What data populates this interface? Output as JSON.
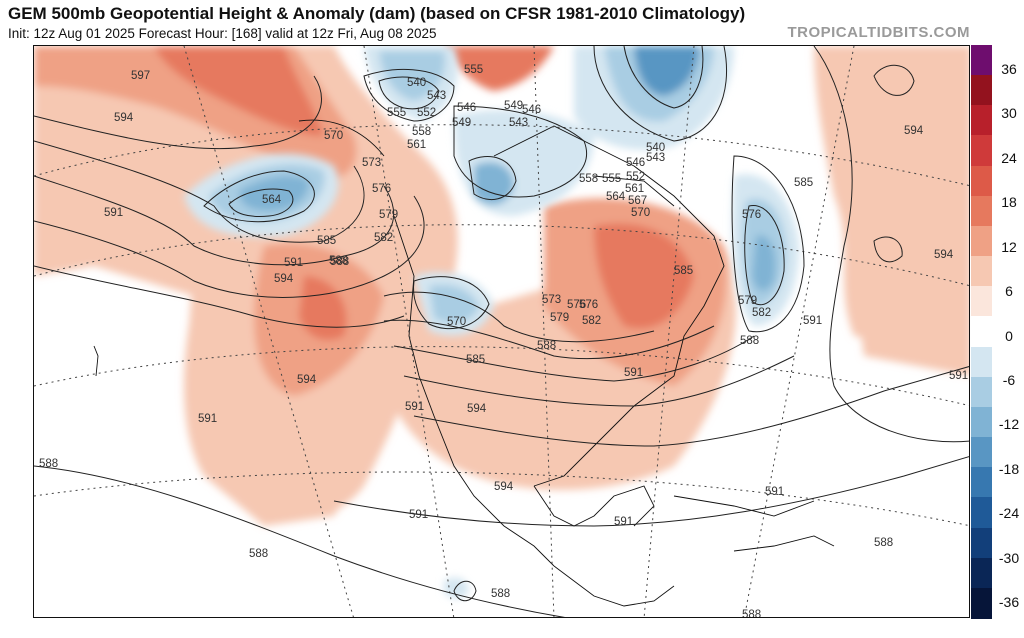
{
  "header": {
    "title": "GEM 500mb Geopotential Height & Anomaly (dam) (based on CFSR 1981-2010 Climatology)",
    "subtitle": "Init: 12z Aug 01 2025   Forecast Hour: [168]   valid at 12z Fri, Aug 08 2025",
    "brand": "TROPICALTIDBITS.COM"
  },
  "colorbar": {
    "labels": [
      "36",
      "30",
      "24",
      "18",
      "12",
      "6",
      "0",
      "-6",
      "-12",
      "-18",
      "-24",
      "-30",
      "-36"
    ],
    "colors": [
      "#6e0d6e",
      "#93121e",
      "#b8202b",
      "#cf3a3a",
      "#dd5a48",
      "#e6795e",
      "#efa185",
      "#f6c8b2",
      "#fbe6dc",
      "#ffffff",
      "#d4e6f1",
      "#a9cde3",
      "#80b3d4",
      "#5996c3",
      "#3778b0",
      "#1f5a98",
      "#123f7a",
      "#0a2656",
      "#061539"
    ]
  },
  "map": {
    "contour_labels": [
      "597",
      "594",
      "591",
      "591",
      "588",
      "585",
      "582",
      "579",
      "576",
      "573",
      "570",
      "564",
      "561",
      "558",
      "555",
      "552",
      "549",
      "546",
      "543",
      "540",
      "555",
      "549",
      "546",
      "543",
      "540",
      "543",
      "546",
      "552",
      "555",
      "558",
      "561",
      "564",
      "567",
      "570",
      "573",
      "576",
      "579",
      "582",
      "585",
      "585",
      "588",
      "591",
      "591",
      "594",
      "594",
      "594",
      "588",
      "591",
      "594",
      "585",
      "579",
      "582",
      "576",
      "591",
      "591",
      "588",
      "588",
      "591",
      "591",
      "588",
      "588",
      "588",
      "594",
      "576",
      "570",
      "588",
      "591",
      "594"
    ]
  }
}
